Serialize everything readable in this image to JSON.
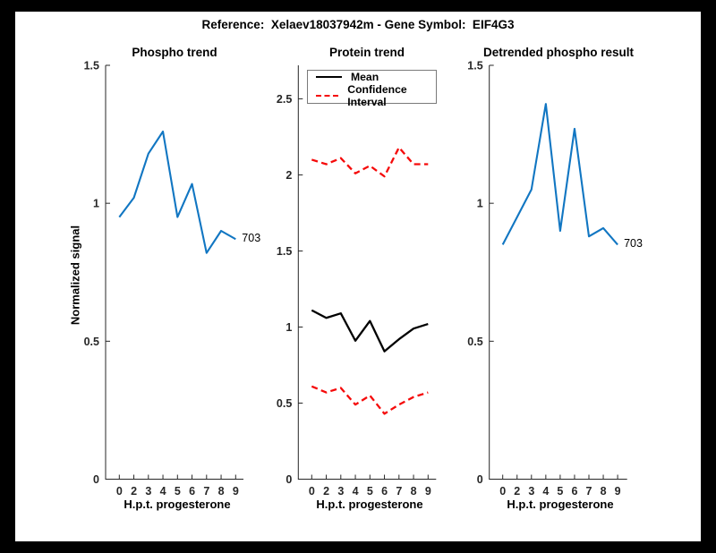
{
  "page": {
    "title": "Reference:  Xelaev18037942m - Gene Symbol:  EIF4G3",
    "background_color": "#000000",
    "figure_color": "#ffffff",
    "axis_color": "#262626"
  },
  "chart_data": [
    {
      "type": "line",
      "title": "Phospho trend",
      "xlabel": "H.p.t. progesterone",
      "ylabel": "Normalized signal",
      "x_ticklabels": [
        "0",
        "2",
        "3",
        "4",
        "5",
        "6",
        "7",
        "8",
        "9"
      ],
      "y_ticks": [
        0,
        0.5,
        1,
        1.5
      ],
      "y_ticklabels": [
        "0",
        "0.5",
        "1",
        "1.5"
      ],
      "ylim": [
        0,
        1.5
      ],
      "grid": false,
      "legend_position": "none",
      "series": [
        {
          "name": "phospho",
          "color": "#1176c2",
          "style": "solid",
          "values": [
            0.95,
            1.02,
            1.18,
            1.26,
            0.95,
            1.07,
            0.82,
            0.9,
            0.87
          ]
        }
      ],
      "end_label": "703"
    },
    {
      "type": "line",
      "title": "Protein trend",
      "xlabel": "H.p.t. progesterone",
      "ylabel": "",
      "x_ticklabels": [
        "0",
        "2",
        "3",
        "4",
        "5",
        "6",
        "7",
        "8",
        "9"
      ],
      "y_ticks": [
        0,
        0.5,
        1,
        1.5,
        2,
        2.5
      ],
      "y_ticklabels": [
        "0",
        "0.5",
        "1",
        "1.5",
        "2",
        "2.5"
      ],
      "ylim": [
        0,
        2.72
      ],
      "grid": false,
      "legend": [
        "Mean",
        "Confidence Interval"
      ],
      "legend_position": "top-left",
      "series": [
        {
          "name": "Mean",
          "color": "#000000",
          "style": "solid",
          "values": [
            1.11,
            1.06,
            1.09,
            0.91,
            1.04,
            0.84,
            0.92,
            0.99,
            1.02
          ]
        },
        {
          "name": "Confidence Interval upper",
          "color": "#f50a0a",
          "style": "dashed",
          "values": [
            2.1,
            2.07,
            2.11,
            2.01,
            2.06,
            1.99,
            2.18,
            2.07,
            2.07
          ]
        },
        {
          "name": "Confidence Interval lower",
          "color": "#f50a0a",
          "style": "dashed",
          "values": [
            0.61,
            0.57,
            0.6,
            0.49,
            0.55,
            0.43,
            0.49,
            0.54,
            0.57
          ]
        }
      ]
    },
    {
      "type": "line",
      "title": "Detrended phospho result",
      "xlabel": "H.p.t. progesterone",
      "ylabel": "",
      "x_ticklabels": [
        "0",
        "2",
        "3",
        "4",
        "5",
        "6",
        "7",
        "8",
        "9"
      ],
      "y_ticks": [
        0,
        0.5,
        1,
        1.5
      ],
      "y_ticklabels": [
        "0",
        "0.5",
        "1",
        "1.5"
      ],
      "ylim": [
        0,
        1.5
      ],
      "grid": false,
      "legend_position": "none",
      "series": [
        {
          "name": "detrended phospho",
          "color": "#1176c2",
          "style": "solid",
          "values": [
            0.85,
            0.95,
            1.05,
            1.36,
            0.9,
            1.27,
            0.88,
            0.91,
            0.85
          ]
        }
      ],
      "end_label": "703"
    }
  ]
}
